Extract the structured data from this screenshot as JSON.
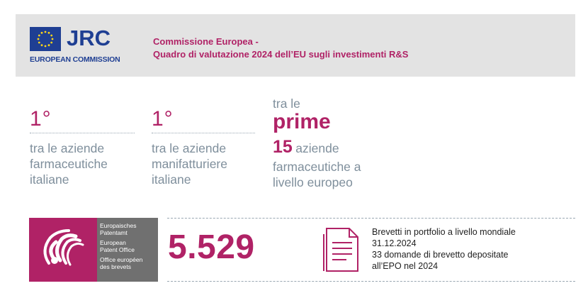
{
  "header": {
    "logo_wordmark": "JRC",
    "logo_subtitle": "EUROPEAN COMMISSION",
    "title_line1": "Commissione Europea -",
    "title_line2": "Quadro di valutazione 2024 dell’EU sugli investimenti R&S",
    "background_color": "#e3e3e3",
    "accent_color": "#b02266",
    "brand_color": "#1f3f93"
  },
  "stats": [
    {
      "rank": "1°",
      "desc_lines": [
        "tra le aziende",
        "farmaceutiche",
        "italiane"
      ]
    },
    {
      "rank": "1°",
      "desc_lines": [
        "tra le aziende",
        "manifatturiere",
        "italiane"
      ]
    }
  ],
  "stat3": {
    "line1": "tra le",
    "highlight": "prime",
    "number": "15",
    "after_number": "aziende",
    "line4": "farmaceutiche a",
    "line5": "livello europeo"
  },
  "epo_logo": {
    "text_lines": [
      "Europaisches",
      "Patentamt",
      "European",
      "Patent Office",
      "Office européen",
      "des brevets"
    ]
  },
  "patents": {
    "count": "5.529",
    "icon": "document-icon",
    "description_lines": [
      "Brevetti in portfolio a livello mondiale",
      "31.12.2024",
      "33 domande di brevetto depositate",
      "all’EPO nel 2024"
    ]
  }
}
